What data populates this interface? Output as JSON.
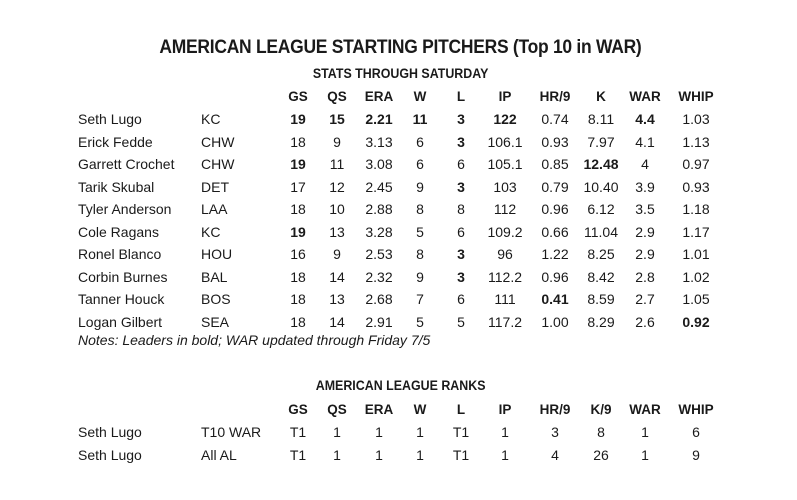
{
  "title": "AMERICAN LEAGUE STARTING PITCHERS (Top 10 in WAR)",
  "subtitle": "STATS THROUGH SATURDAY",
  "stats_table": {
    "columns": [
      "GS",
      "QS",
      "ERA",
      "W",
      "L",
      "IP",
      "HR/9",
      "K",
      "WAR",
      "WHIP"
    ],
    "rows": [
      {
        "name": "Seth Lugo",
        "team": "KC",
        "values": [
          "19",
          "15",
          "2.21",
          "11",
          "3",
          "122",
          "0.74",
          "8.11",
          "4.4",
          "1.03"
        ],
        "bold": [
          true,
          true,
          true,
          true,
          true,
          true,
          false,
          false,
          true,
          false
        ]
      },
      {
        "name": "Erick Fedde",
        "team": "CHW",
        "values": [
          "18",
          "9",
          "3.13",
          "6",
          "3",
          "106.1",
          "0.93",
          "7.97",
          "4.1",
          "1.13"
        ],
        "bold": [
          false,
          false,
          false,
          false,
          true,
          false,
          false,
          false,
          false,
          false
        ]
      },
      {
        "name": "Garrett Crochet",
        "team": "CHW",
        "values": [
          "19",
          "11",
          "3.08",
          "6",
          "6",
          "105.1",
          "0.85",
          "12.48",
          "4",
          "0.97"
        ],
        "bold": [
          true,
          false,
          false,
          false,
          false,
          false,
          false,
          true,
          false,
          false
        ]
      },
      {
        "name": "Tarik Skubal",
        "team": "DET",
        "values": [
          "17",
          "12",
          "2.45",
          "9",
          "3",
          "103",
          "0.79",
          "10.40",
          "3.9",
          "0.93"
        ],
        "bold": [
          false,
          false,
          false,
          false,
          true,
          false,
          false,
          false,
          false,
          false
        ]
      },
      {
        "name": "Tyler Anderson",
        "team": "LAA",
        "values": [
          "18",
          "10",
          "2.88",
          "8",
          "8",
          "112",
          "0.96",
          "6.12",
          "3.5",
          "1.18"
        ],
        "bold": [
          false,
          false,
          false,
          false,
          false,
          false,
          false,
          false,
          false,
          false
        ]
      },
      {
        "name": "Cole Ragans",
        "team": "KC",
        "values": [
          "19",
          "13",
          "3.28",
          "5",
          "6",
          "109.2",
          "0.66",
          "11.04",
          "2.9",
          "1.17"
        ],
        "bold": [
          true,
          false,
          false,
          false,
          false,
          false,
          false,
          false,
          false,
          false
        ]
      },
      {
        "name": "Ronel Blanco",
        "team": "HOU",
        "values": [
          "16",
          "9",
          "2.53",
          "8",
          "3",
          "96",
          "1.22",
          "8.25",
          "2.9",
          "1.01"
        ],
        "bold": [
          false,
          false,
          false,
          false,
          true,
          false,
          false,
          false,
          false,
          false
        ]
      },
      {
        "name": "Corbin Burnes",
        "team": "BAL",
        "values": [
          "18",
          "14",
          "2.32",
          "9",
          "3",
          "112.2",
          "0.96",
          "8.42",
          "2.8",
          "1.02"
        ],
        "bold": [
          false,
          false,
          false,
          false,
          true,
          false,
          false,
          false,
          false,
          false
        ]
      },
      {
        "name": "Tanner Houck",
        "team": "BOS",
        "values": [
          "18",
          "13",
          "2.68",
          "7",
          "6",
          "111",
          "0.41",
          "8.59",
          "2.7",
          "1.05"
        ],
        "bold": [
          false,
          false,
          false,
          false,
          false,
          false,
          true,
          false,
          false,
          false
        ]
      },
      {
        "name": "Logan Gilbert",
        "team": "SEA",
        "values": [
          "18",
          "14",
          "2.91",
          "5",
          "5",
          "117.2",
          "1.00",
          "8.29",
          "2.6",
          "0.92"
        ],
        "bold": [
          false,
          false,
          false,
          false,
          false,
          false,
          false,
          false,
          false,
          true
        ]
      }
    ]
  },
  "notes": "Notes: Leaders in bold; WAR updated through Friday 7/5",
  "ranks_table": {
    "title": "AMERICAN LEAGUE RANKS",
    "columns": [
      "GS",
      "QS",
      "ERA",
      "W",
      "L",
      "IP",
      "HR/9",
      "K/9",
      "WAR",
      "WHIP"
    ],
    "rows": [
      {
        "name": "Seth Lugo",
        "scope": "T10 WAR",
        "values": [
          "T1",
          "1",
          "1",
          "1",
          "T1",
          "1",
          "3",
          "8",
          "1",
          "6"
        ]
      },
      {
        "name": "Seth Lugo",
        "scope": "All AL",
        "values": [
          "T1",
          "1",
          "1",
          "1",
          "T1",
          "1",
          "4",
          "26",
          "1",
          "9"
        ]
      }
    ]
  }
}
